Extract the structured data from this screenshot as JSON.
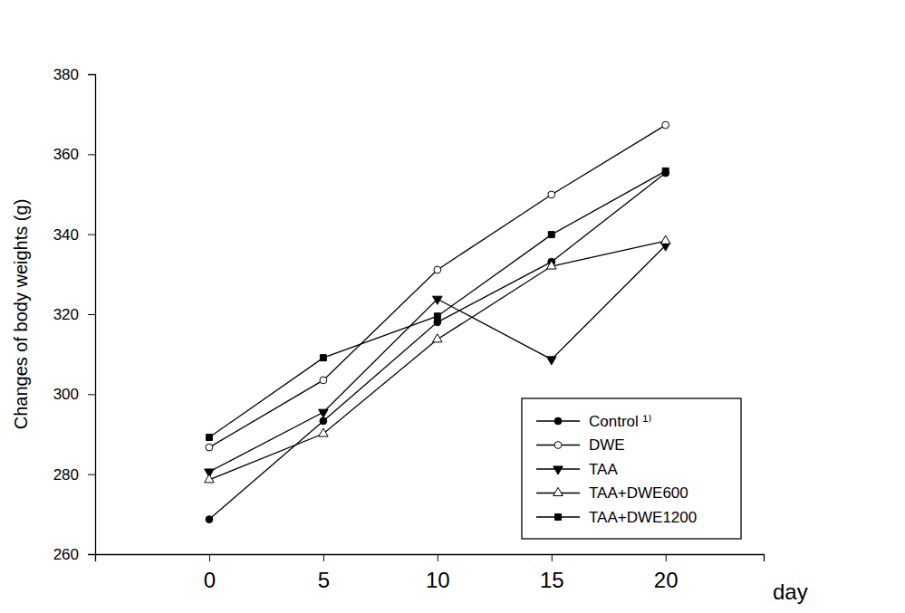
{
  "chart_data": {
    "type": "line",
    "x_label": "day",
    "y_label": "Changes of body weights (g)",
    "x": [
      0,
      5,
      10,
      15,
      20
    ],
    "xlim": [
      -5,
      24.3
    ],
    "xticks": [
      0,
      5,
      10,
      15,
      20
    ],
    "ylim": [
      260,
      380
    ],
    "yticks": [
      260,
      280,
      300,
      320,
      340,
      360,
      380
    ],
    "grid": false,
    "legend": "lower right",
    "series": [
      {
        "name": "Control ¹⁾",
        "color": "#000000",
        "marker": "circle",
        "line_style": "solid",
        "values": [
          268.7,
          293.3,
          318.0,
          333.1,
          355.3
        ]
      },
      {
        "name": "DWE",
        "color": "#000000",
        "marker": "circle-open",
        "line_style": "solid",
        "values": [
          286.7,
          303.5,
          331.1,
          349.9,
          367.3
        ]
      },
      {
        "name": "TAA",
        "color": "#000000",
        "marker": "triangle-down",
        "line_style": "solid",
        "values": [
          280.6,
          295.5,
          323.8,
          308.7,
          337.2
        ]
      },
      {
        "name": "TAA+DWE600",
        "color": "#000000",
        "marker": "triangle-up-open",
        "line_style": "solid",
        "values": [
          278.6,
          290.1,
          313.7,
          332.0,
          338.3
        ]
      },
      {
        "name": "TAA+DWE1200",
        "color": "#000000",
        "marker": "square",
        "line_style": "solid",
        "values": [
          289.2,
          309.1,
          319.5,
          339.9,
          355.8
        ]
      }
    ]
  }
}
